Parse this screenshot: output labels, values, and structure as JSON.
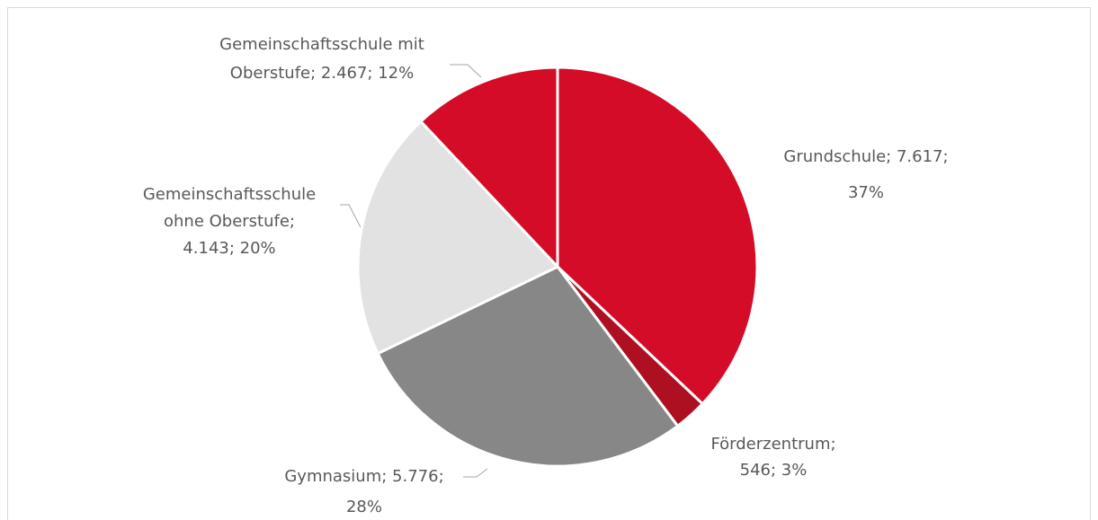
{
  "chart_data": {
    "type": "pie",
    "values": [
      7617,
      546,
      5776,
      4143,
      2467
    ],
    "value_labels": [
      [
        "Grundschule; 7.617;",
        "37%"
      ],
      [
        "Förderzentrum;",
        "546; 3%"
      ],
      [
        "Gymnasium; 5.776;",
        "28%"
      ],
      [
        "Gemeinschaftsschule",
        "ohne Oberstufe;",
        "4.143; 20%"
      ],
      [
        "Gemeinschaftsschule mit",
        "Oberstufe; 2.467; 12%"
      ]
    ],
    "colors": [
      "#d50c28",
      "#ad1020",
      "#878787",
      "#e2e2e2",
      "#d50c28"
    ]
  }
}
